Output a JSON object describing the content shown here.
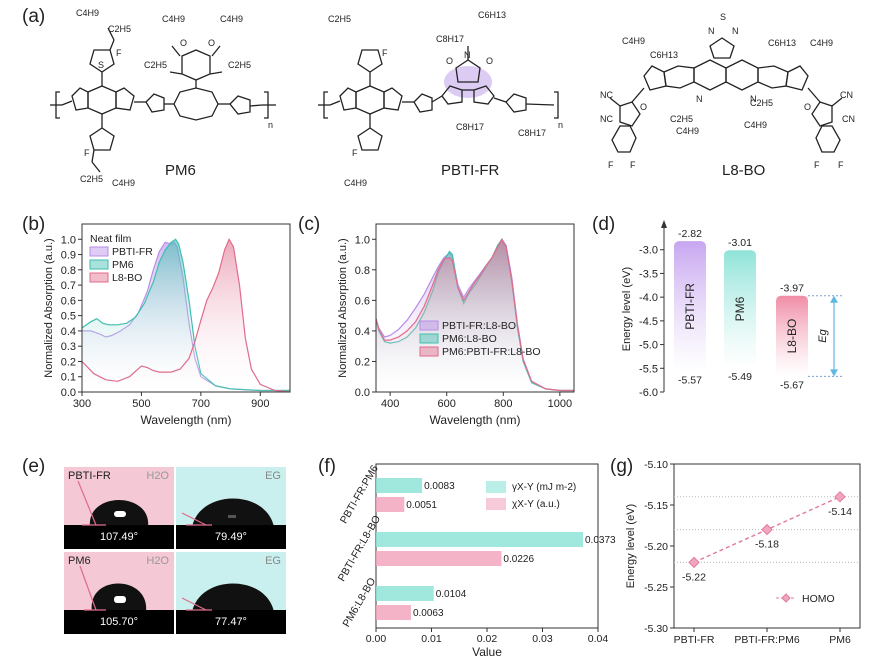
{
  "panels": {
    "a": "(a)",
    "b": "(b)",
    "c": "(c)",
    "d": "(d)",
    "e": "(e)",
    "f": "(f)",
    "g": "(g)"
  },
  "molecules": [
    {
      "name": "PM6"
    },
    {
      "name": "PBTI-FR"
    },
    {
      "name": "L8-BO"
    }
  ],
  "chem_labels": {
    "c4h9": "C4H9",
    "c2h5": "C2H5",
    "c6h13": "C6H13",
    "c8h17": "C8H17",
    "s": "S",
    "f": "F",
    "o": "O",
    "n": "N",
    "cn": "CN",
    "nc": "NC",
    "n_sub": "n"
  },
  "contact_angles": {
    "title_pbti": "PBTI-FR",
    "title_pm6": "PM6",
    "liquid_water": "H2O",
    "liquid_eg": "EG",
    "values": [
      "107.49°",
      "79.49°",
      "105.70°",
      "77.47°"
    ],
    "colors": {
      "water_bg": "#f4c8d4",
      "eg_bg": "#c9f0ee"
    }
  },
  "chart_data": [
    {
      "id": "b",
      "type": "line",
      "xlabel": "Wavelength (nm)",
      "ylabel": "Normalized Absorption (a.u.)",
      "xlim": [
        300,
        1000
      ],
      "ylim": [
        0,
        1.1
      ],
      "xticks": [
        300,
        500,
        700,
        900
      ],
      "yticks": [
        0.0,
        0.1,
        0.2,
        0.3,
        0.4,
        0.5,
        0.6,
        0.7,
        0.8,
        0.9,
        1.0
      ],
      "legend_title": "Neat film",
      "legend_position": "top-left",
      "series": [
        {
          "name": "PBTI-FR",
          "color": "#b78ee8",
          "x": [
            300,
            330,
            360,
            380,
            400,
            430,
            460,
            490,
            520,
            540,
            560,
            580,
            600,
            610,
            620,
            640,
            660,
            680,
            700,
            750,
            800,
            900,
            1000
          ],
          "y": [
            0.4,
            0.4,
            0.38,
            0.36,
            0.37,
            0.4,
            0.44,
            0.52,
            0.66,
            0.8,
            0.92,
            0.98,
            0.97,
            0.98,
            0.95,
            0.75,
            0.45,
            0.22,
            0.1,
            0.04,
            0.02,
            0.01,
            0.01
          ]
        },
        {
          "name": "PM6",
          "color": "#3fbfb0",
          "x": [
            300,
            330,
            350,
            370,
            390,
            420,
            450,
            480,
            510,
            540,
            560,
            580,
            600,
            615,
            625,
            640,
            660,
            680,
            700,
            750,
            800,
            900,
            1000
          ],
          "y": [
            0.42,
            0.46,
            0.48,
            0.45,
            0.44,
            0.44,
            0.45,
            0.49,
            0.58,
            0.72,
            0.85,
            0.93,
            0.98,
            1.0,
            0.97,
            0.85,
            0.6,
            0.3,
            0.12,
            0.04,
            0.02,
            0.01,
            0.01
          ]
        },
        {
          "name": "L8-BO",
          "color": "#e06c8c",
          "x": [
            300,
            340,
            380,
            420,
            460,
            500,
            520,
            540,
            560,
            600,
            630,
            660,
            680,
            700,
            720,
            740,
            760,
            780,
            795,
            810,
            830,
            850,
            870,
            900,
            950,
            1000
          ],
          "y": [
            0.2,
            0.12,
            0.08,
            0.07,
            0.1,
            0.17,
            0.16,
            0.14,
            0.13,
            0.13,
            0.15,
            0.22,
            0.33,
            0.47,
            0.6,
            0.68,
            0.78,
            0.93,
            1.0,
            0.95,
            0.7,
            0.35,
            0.15,
            0.05,
            0.01,
            0.0
          ]
        }
      ]
    },
    {
      "id": "c",
      "type": "line",
      "xlabel": "Wavelength (nm)",
      "ylabel": "Normalized Absorption (a.u.)",
      "xlim": [
        350,
        1050
      ],
      "ylim": [
        0,
        1.1
      ],
      "xticks": [
        400,
        600,
        800,
        1000
      ],
      "yticks": [
        0.0,
        0.2,
        0.4,
        0.6,
        0.8,
        1.0
      ],
      "legend_position": "bottom-right",
      "series": [
        {
          "name": "PBTI-FR:L8-BO",
          "color": "#b78ee8",
          "x": [
            350,
            360,
            380,
            400,
            430,
            460,
            490,
            520,
            550,
            570,
            590,
            610,
            620,
            640,
            660,
            680,
            700,
            720,
            740,
            760,
            780,
            795,
            810,
            830,
            850,
            870,
            900,
            950,
            1000,
            1050
          ],
          "y": [
            0.48,
            0.42,
            0.36,
            0.37,
            0.41,
            0.47,
            0.55,
            0.64,
            0.75,
            0.82,
            0.88,
            0.91,
            0.88,
            0.7,
            0.62,
            0.68,
            0.73,
            0.78,
            0.83,
            0.88,
            0.95,
            1.0,
            0.96,
            0.75,
            0.45,
            0.22,
            0.07,
            0.02,
            0.01,
            0.01
          ]
        },
        {
          "name": "PM6:L8-BO",
          "color": "#3fbfb0",
          "x": [
            350,
            360,
            380,
            400,
            430,
            460,
            490,
            520,
            550,
            570,
            590,
            610,
            620,
            640,
            660,
            680,
            700,
            720,
            740,
            760,
            780,
            795,
            810,
            830,
            850,
            870,
            900,
            950,
            1000,
            1050
          ],
          "y": [
            0.48,
            0.4,
            0.33,
            0.32,
            0.33,
            0.36,
            0.42,
            0.52,
            0.66,
            0.78,
            0.86,
            0.92,
            0.9,
            0.68,
            0.58,
            0.65,
            0.7,
            0.76,
            0.82,
            0.88,
            0.96,
            1.0,
            0.95,
            0.72,
            0.42,
            0.2,
            0.06,
            0.02,
            0.01,
            0.01
          ]
        },
        {
          "name": "PM6:PBTI-FR:L8-BO",
          "color": "#e06c8c",
          "x": [
            350,
            360,
            380,
            400,
            430,
            460,
            490,
            520,
            550,
            570,
            590,
            610,
            620,
            640,
            660,
            680,
            700,
            720,
            740,
            760,
            780,
            795,
            810,
            830,
            850,
            870,
            900,
            950,
            1000,
            1050
          ],
          "y": [
            0.48,
            0.41,
            0.34,
            0.34,
            0.36,
            0.4,
            0.46,
            0.56,
            0.7,
            0.8,
            0.87,
            0.88,
            0.86,
            0.68,
            0.6,
            0.66,
            0.72,
            0.77,
            0.83,
            0.88,
            0.95,
            1.0,
            0.95,
            0.73,
            0.44,
            0.21,
            0.07,
            0.02,
            0.01,
            0.01
          ]
        }
      ]
    },
    {
      "id": "d",
      "type": "bar",
      "ylabel": "Energy level (eV)",
      "ylim": [
        -6.0,
        -2.5
      ],
      "yticks": [
        -3.0,
        -3.5,
        -4.0,
        -4.5,
        -5.0,
        -5.5,
        -6.0
      ],
      "annotation": "Eg",
      "categories": [
        "PBTI-FR",
        "PM6",
        "L8-BO"
      ],
      "lumo": [
        -2.82,
        -3.01,
        -3.97
      ],
      "homo": [
        -5.57,
        -5.49,
        -5.67
      ],
      "lumo_labels": [
        "-2.82",
        "-3.01",
        "-3.97"
      ],
      "homo_labels": [
        "-5.57",
        "-5.49",
        "-5.67"
      ],
      "colors": [
        "#c7a6f0",
        "#8fe3d8",
        "#f08ca6"
      ]
    },
    {
      "id": "f",
      "type": "bar",
      "orientation": "horizontal",
      "xlabel": "Value",
      "xlim": [
        0.0,
        0.04
      ],
      "xticks": [
        0.0,
        0.01,
        0.02,
        0.03,
        0.04
      ],
      "xtick_labels": [
        "0.00",
        "0.01",
        "0.02",
        "0.03",
        "0.04"
      ],
      "categories": [
        "PBTI-FR:PM6",
        "PBTI-FR:L8-BO",
        "PM6:L8-BO"
      ],
      "legend_position": "top-right",
      "series": [
        {
          "name": "γX-Y (mJ m-2)",
          "color": "#8fe3d8",
          "values": [
            0.0083,
            0.0373,
            0.0104
          ],
          "labels": [
            "0.0083",
            "0.0373",
            "0.0104"
          ]
        },
        {
          "name": "χX-Y (a.u.)",
          "color": "#f2a6bd",
          "values": [
            0.0051,
            0.0226,
            0.0063
          ],
          "labels": [
            "0.0051",
            "0.0226",
            "0.0063"
          ]
        }
      ]
    },
    {
      "id": "g",
      "type": "line",
      "ylabel": "Energy level (eV)",
      "ylim": [
        -5.3,
        -5.1
      ],
      "yticks": [
        -5.1,
        -5.15,
        -5.2,
        -5.25,
        -5.3
      ],
      "ytick_labels": [
        "-5.10",
        "-5.15",
        "-5.20",
        "-5.25",
        "-5.30"
      ],
      "categories": [
        "PBTI-FR",
        "PBTI-FR:PM6",
        "PM6"
      ],
      "legend_position": "bottom-right",
      "series": [
        {
          "name": "HOMO",
          "color": "#e07a9a",
          "values": [
            -5.22,
            -5.18,
            -5.14
          ],
          "labels": [
            "-5.22",
            "-5.18",
            "-5.14"
          ]
        }
      ]
    }
  ]
}
